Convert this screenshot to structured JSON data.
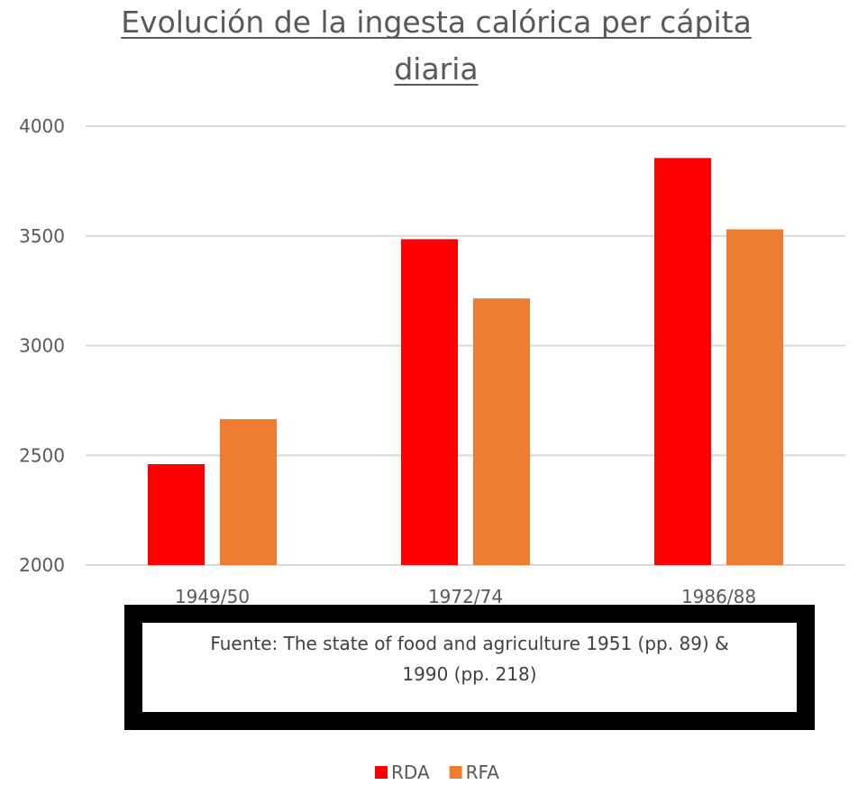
{
  "chart_data": {
    "type": "bar",
    "title": "Evolución de la ingesta calórica per cápita diaria",
    "title_lines": [
      "Evolución de la ingesta calórica per cápita",
      "diaria"
    ],
    "categories": [
      "1949/50",
      "1972/74",
      "1986/88"
    ],
    "series": [
      {
        "name": "RDA",
        "color": "#ff0000",
        "values": [
          2460,
          3485,
          3855
        ]
      },
      {
        "name": "RFA",
        "color": "#ed7d31",
        "values": [
          2665,
          3215,
          3530
        ]
      }
    ],
    "ylim": [
      2000,
      4000
    ],
    "yticks": [
      2000,
      2500,
      3000,
      3500,
      4000
    ],
    "xlabel": "",
    "ylabel": "",
    "grid": true,
    "legend_position": "bottom"
  },
  "source": {
    "line1": "Fuente: The  state of food and agriculture 1951 (pp. 89) &",
    "line2": "1990 (pp. 218)"
  }
}
